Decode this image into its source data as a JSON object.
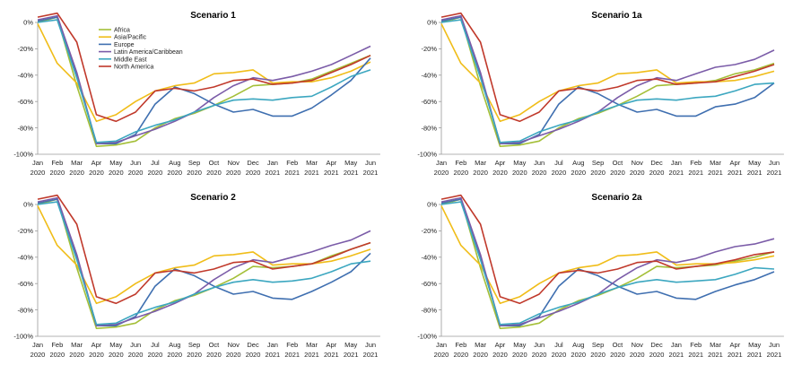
{
  "chart_data": [
    {
      "type": "line",
      "title": "Scenario 1",
      "categories": [
        [
          "Jan",
          "2020"
        ],
        [
          "Feb",
          "2020"
        ],
        [
          "Mar",
          "2020"
        ],
        [
          "Apr",
          "2020"
        ],
        [
          "May",
          "2020"
        ],
        [
          "Jun",
          "2020"
        ],
        [
          "Jul",
          "2020"
        ],
        [
          "Aug",
          "2020"
        ],
        [
          "Sep",
          "2020"
        ],
        [
          "Oct",
          "2020"
        ],
        [
          "Nov",
          "2020"
        ],
        [
          "Dec",
          "2020"
        ],
        [
          "Jan",
          "2021"
        ],
        [
          "Feb",
          "2021"
        ],
        [
          "Mar",
          "2021"
        ],
        [
          "Apr",
          "2021"
        ],
        [
          "May",
          "2021"
        ],
        [
          "Jun",
          "2021"
        ]
      ],
      "ylim": [
        -100,
        0
      ],
      "yticks": [
        0,
        -20,
        -40,
        -60,
        -80,
        -100
      ],
      "ytick_labels": [
        "0%",
        "-20%",
        "-40%",
        "-60%",
        "-80%",
        "-100%"
      ],
      "show_legend": true,
      "series": [
        {
          "name": "Africa",
          "color": "#a4bf38",
          "values": [
            0,
            4,
            -48,
            -94,
            -93,
            -90,
            -80,
            -73,
            -69,
            -63,
            -56,
            -48,
            -47,
            -46,
            -43,
            -37,
            -31,
            -25
          ]
        },
        {
          "name": "Asia/Pacific",
          "color": "#f0bd19",
          "values": [
            -1,
            -31,
            -46,
            -75,
            -70,
            -60,
            -52,
            -48,
            -46,
            -39,
            -38,
            -36,
            -46,
            -45,
            -45,
            -42,
            -37,
            -30
          ]
        },
        {
          "name": "Europe",
          "color": "#3f6fb0",
          "values": [
            1,
            4,
            -40,
            -92,
            -92,
            -85,
            -62,
            -49,
            -54,
            -62,
            -68,
            -66,
            -71,
            -71,
            -65,
            -55,
            -44,
            -27
          ]
        },
        {
          "name": "Latin America/Caribbean",
          "color": "#7b5ca8",
          "values": [
            2,
            5,
            -38,
            -92,
            -91,
            -86,
            -81,
            -75,
            -68,
            -57,
            -48,
            -42,
            -44,
            -41,
            -37,
            -32,
            -25,
            -18
          ]
        },
        {
          "name": "Middle East",
          "color": "#3ca7c0",
          "values": [
            0,
            2,
            -42,
            -91,
            -90,
            -83,
            -78,
            -74,
            -68,
            -63,
            -59,
            -58,
            -59,
            -57,
            -56,
            -49,
            -41,
            -36
          ]
        },
        {
          "name": "North America",
          "color": "#c0392b",
          "values": [
            4,
            7,
            -15,
            -70,
            -75,
            -68,
            -52,
            -50,
            -52,
            -49,
            -44,
            -43,
            -47,
            -46,
            -44,
            -38,
            -32,
            -25
          ]
        }
      ]
    },
    {
      "type": "line",
      "title": "Scenario 1a",
      "categories": [
        [
          "Jan",
          "2020"
        ],
        [
          "Feb",
          "2020"
        ],
        [
          "Mar",
          "2020"
        ],
        [
          "Apr",
          "2020"
        ],
        [
          "May",
          "2020"
        ],
        [
          "Jun",
          "2020"
        ],
        [
          "Jul",
          "2020"
        ],
        [
          "Aug",
          "2020"
        ],
        [
          "Sep",
          "2020"
        ],
        [
          "Oct",
          "2020"
        ],
        [
          "Nov",
          "2020"
        ],
        [
          "Dec",
          "2020"
        ],
        [
          "Jan",
          "2021"
        ],
        [
          "Feb",
          "2021"
        ],
        [
          "Mar",
          "2021"
        ],
        [
          "Apr",
          "2021"
        ],
        [
          "May",
          "2021"
        ],
        [
          "Jun",
          "2021"
        ]
      ],
      "ylim": [
        -100,
        0
      ],
      "yticks": [
        0,
        -20,
        -40,
        -60,
        -80,
        -100
      ],
      "ytick_labels": [
        "0%",
        "-20%",
        "-40%",
        "-60%",
        "-80%",
        "-100%"
      ],
      "show_legend": false,
      "series": [
        {
          "name": "Africa",
          "color": "#a4bf38",
          "values": [
            0,
            4,
            -48,
            -94,
            -93,
            -90,
            -80,
            -73,
            -69,
            -63,
            -56,
            -48,
            -47,
            -46,
            -44,
            -39,
            -36,
            -31
          ]
        },
        {
          "name": "Asia/Pacific",
          "color": "#f0bd19",
          "values": [
            -1,
            -31,
            -46,
            -75,
            -70,
            -60,
            -52,
            -48,
            -46,
            -39,
            -38,
            -36,
            -46,
            -45,
            -45,
            -44,
            -41,
            -37
          ]
        },
        {
          "name": "Europe",
          "color": "#3f6fb0",
          "values": [
            1,
            4,
            -40,
            -92,
            -92,
            -85,
            -62,
            -49,
            -54,
            -62,
            -68,
            -66,
            -71,
            -71,
            -64,
            -62,
            -57,
            -46
          ]
        },
        {
          "name": "Latin America/Caribbean",
          "color": "#7b5ca8",
          "values": [
            2,
            5,
            -38,
            -92,
            -91,
            -86,
            -81,
            -75,
            -68,
            -57,
            -48,
            -42,
            -44,
            -39,
            -34,
            -32,
            -28,
            -21
          ]
        },
        {
          "name": "Middle East",
          "color": "#3ca7c0",
          "values": [
            0,
            2,
            -42,
            -91,
            -90,
            -83,
            -78,
            -74,
            -68,
            -63,
            -59,
            -58,
            -59,
            -57,
            -56,
            -52,
            -47,
            -46
          ]
        },
        {
          "name": "North America",
          "color": "#c0392b",
          "values": [
            4,
            7,
            -15,
            -70,
            -75,
            -68,
            -52,
            -50,
            -52,
            -49,
            -44,
            -43,
            -47,
            -46,
            -45,
            -41,
            -37,
            -32
          ]
        }
      ]
    },
    {
      "type": "line",
      "title": "Scenario 2",
      "categories": [
        [
          "Jan",
          "2020"
        ],
        [
          "Feb",
          "2020"
        ],
        [
          "Mar",
          "2020"
        ],
        [
          "Apr",
          "2020"
        ],
        [
          "May",
          "2020"
        ],
        [
          "Jun",
          "2020"
        ],
        [
          "Jul",
          "2020"
        ],
        [
          "Aug",
          "2020"
        ],
        [
          "Sep",
          "2020"
        ],
        [
          "Oct",
          "2020"
        ],
        [
          "Nov",
          "2020"
        ],
        [
          "Dec",
          "2020"
        ],
        [
          "Jan",
          "2021"
        ],
        [
          "Feb",
          "2021"
        ],
        [
          "Mar",
          "2021"
        ],
        [
          "Apr",
          "2021"
        ],
        [
          "May",
          "2021"
        ],
        [
          "Jun",
          "2021"
        ]
      ],
      "ylim": [
        -100,
        0
      ],
      "yticks": [
        0,
        -20,
        -40,
        -60,
        -80,
        -100
      ],
      "ytick_labels": [
        "0%",
        "-20%",
        "-40%",
        "-60%",
        "-80%",
        "-100%"
      ],
      "show_legend": false,
      "series": [
        {
          "name": "Africa",
          "color": "#a4bf38",
          "values": [
            0,
            4,
            -48,
            -94,
            -93,
            -90,
            -80,
            -73,
            -69,
            -63,
            -56,
            -47,
            -48,
            -47,
            -45,
            -39,
            -34,
            -29
          ]
        },
        {
          "name": "Asia/Pacific",
          "color": "#f0bd19",
          "values": [
            -1,
            -31,
            -46,
            -75,
            -70,
            -60,
            -52,
            -48,
            -46,
            -39,
            -38,
            -36,
            -46,
            -45,
            -45,
            -43,
            -39,
            -34
          ]
        },
        {
          "name": "Europe",
          "color": "#3f6fb0",
          "values": [
            1,
            4,
            -40,
            -92,
            -92,
            -85,
            -62,
            -49,
            -54,
            -62,
            -68,
            -66,
            -71,
            -72,
            -66,
            -59,
            -51,
            -37
          ]
        },
        {
          "name": "Latin America/Caribbean",
          "color": "#7b5ca8",
          "values": [
            2,
            5,
            -38,
            -92,
            -91,
            -86,
            -81,
            -75,
            -68,
            -57,
            -48,
            -42,
            -44,
            -40,
            -36,
            -31,
            -27,
            -20
          ]
        },
        {
          "name": "Middle East",
          "color": "#3ca7c0",
          "values": [
            0,
            2,
            -42,
            -91,
            -90,
            -83,
            -78,
            -74,
            -68,
            -63,
            -59,
            -57,
            -59,
            -58,
            -56,
            -51,
            -45,
            -43
          ]
        },
        {
          "name": "North America",
          "color": "#c0392b",
          "values": [
            4,
            7,
            -15,
            -70,
            -75,
            -68,
            -52,
            -50,
            -52,
            -49,
            -44,
            -43,
            -49,
            -47,
            -45,
            -40,
            -34,
            -29
          ]
        }
      ]
    },
    {
      "type": "line",
      "title": "Scenario 2a",
      "categories": [
        [
          "Jan",
          "2020"
        ],
        [
          "Feb",
          "2020"
        ],
        [
          "Mar",
          "2020"
        ],
        [
          "Apr",
          "2020"
        ],
        [
          "May",
          "2020"
        ],
        [
          "Jun",
          "2020"
        ],
        [
          "Jul",
          "2020"
        ],
        [
          "Aug",
          "2020"
        ],
        [
          "Sep",
          "2020"
        ],
        [
          "Oct",
          "2020"
        ],
        [
          "Nov",
          "2020"
        ],
        [
          "Dec",
          "2020"
        ],
        [
          "Jan",
          "2021"
        ],
        [
          "Feb",
          "2021"
        ],
        [
          "Mar",
          "2021"
        ],
        [
          "Apr",
          "2021"
        ],
        [
          "May",
          "2021"
        ],
        [
          "Jun",
          "2021"
        ]
      ],
      "ylim": [
        -100,
        0
      ],
      "yticks": [
        0,
        -20,
        -40,
        -60,
        -80,
        -100
      ],
      "ytick_labels": [
        "0%",
        "-20%",
        "-40%",
        "-60%",
        "-80%",
        "-100%"
      ],
      "show_legend": false,
      "series": [
        {
          "name": "Africa",
          "color": "#a4bf38",
          "values": [
            0,
            4,
            -48,
            -94,
            -93,
            -90,
            -80,
            -73,
            -69,
            -63,
            -56,
            -47,
            -48,
            -47,
            -46,
            -43,
            -40,
            -36
          ]
        },
        {
          "name": "Asia/Pacific",
          "color": "#f0bd19",
          "values": [
            -1,
            -31,
            -46,
            -75,
            -70,
            -60,
            -52,
            -48,
            -46,
            -39,
            -38,
            -36,
            -46,
            -45,
            -45,
            -44,
            -42,
            -39
          ]
        },
        {
          "name": "Europe",
          "color": "#3f6fb0",
          "values": [
            1,
            4,
            -40,
            -92,
            -92,
            -85,
            -62,
            -49,
            -54,
            -62,
            -68,
            -66,
            -71,
            -72,
            -66,
            -61,
            -57,
            -51
          ]
        },
        {
          "name": "Latin America/Caribbean",
          "color": "#7b5ca8",
          "values": [
            2,
            5,
            -38,
            -92,
            -91,
            -86,
            -81,
            -75,
            -68,
            -57,
            -48,
            -42,
            -44,
            -41,
            -36,
            -32,
            -30,
            -26
          ]
        },
        {
          "name": "Middle East",
          "color": "#3ca7c0",
          "values": [
            0,
            2,
            -42,
            -91,
            -90,
            -83,
            -78,
            -74,
            -68,
            -63,
            -59,
            -57,
            -59,
            -58,
            -57,
            -53,
            -48,
            -49
          ]
        },
        {
          "name": "North America",
          "color": "#c0392b",
          "values": [
            4,
            7,
            -15,
            -70,
            -75,
            -68,
            -52,
            -50,
            -52,
            -49,
            -44,
            -43,
            -49,
            -47,
            -45,
            -42,
            -38,
            -36
          ]
        }
      ]
    }
  ]
}
